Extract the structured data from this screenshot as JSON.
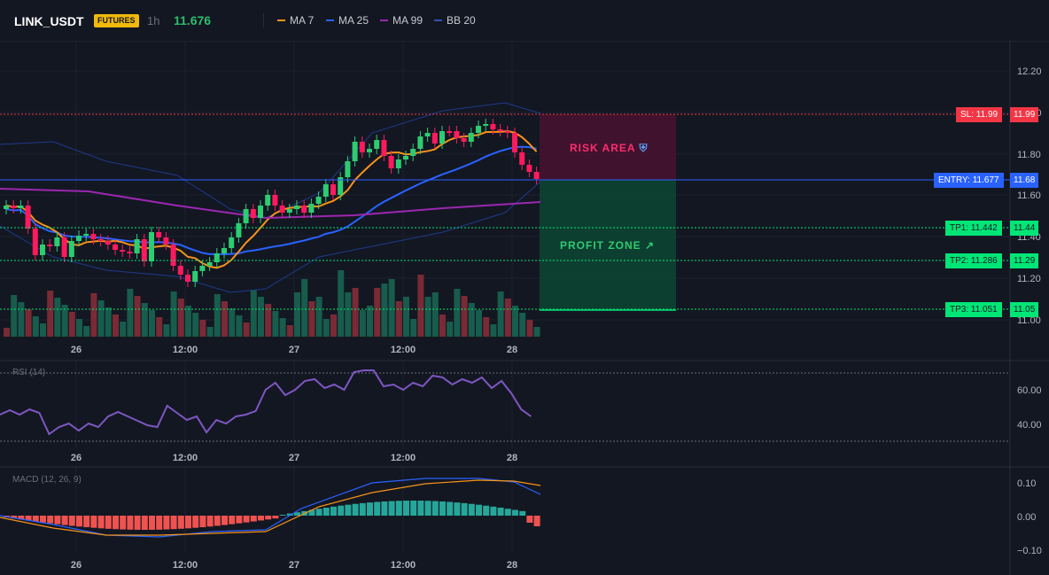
{
  "header": {
    "symbol": "LINK_USDT",
    "badge": "FUTURES",
    "timeframe": "1h",
    "last_price": "11.676",
    "indicators": [
      {
        "name": "MA 7",
        "color": "#f7931a"
      },
      {
        "name": "MA 25",
        "color": "#2962ff"
      },
      {
        "name": "MA 99",
        "color": "#9c27b0"
      },
      {
        "name": "BB 20",
        "color": "#1e3a8a"
      }
    ]
  },
  "colors": {
    "up": "#26a69a",
    "down": "#ef5350",
    "bull_candle": "#2ecc71",
    "bear_candle": "#ff1a5e",
    "entry": "#2962ff",
    "sl": "#f23645",
    "tp": "#00e676"
  },
  "price_axis": {
    "ticks": [
      "12.20",
      "12.00",
      "11.80",
      "11.60",
      "11.40",
      "11.20",
      "11.00"
    ]
  },
  "time_axis": {
    "ticks": [
      "26",
      "12:00",
      "27",
      "12:00",
      "28"
    ]
  },
  "levels": {
    "sl": {
      "tag": "SL: 11.99",
      "value": "11.99"
    },
    "entry": {
      "tag": "ENTRY: 11.677",
      "value": "11.68"
    },
    "tp1": {
      "tag": "TP1: 11.442",
      "value": "11.44"
    },
    "tp2": {
      "tag": "TP2: 11.286",
      "value": "11.29"
    },
    "tp3": {
      "tag": "TP3: 11.051",
      "value": "11.05"
    }
  },
  "zones": {
    "risk_label": "RISK AREA",
    "profit_label": "PROFIT ZONE"
  },
  "rsi": {
    "label": "RSI (14)",
    "ticks": [
      "60.00",
      "40.00"
    ]
  },
  "macd": {
    "label": "MACD (12, 26, 9)",
    "ticks": [
      "0.10",
      "0.00",
      "−0.10"
    ]
  }
}
